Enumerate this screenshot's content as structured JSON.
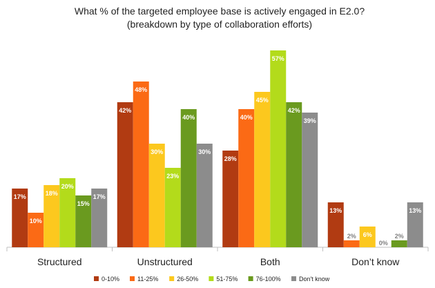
{
  "chart_data": {
    "type": "bar",
    "title": "What % of the targeted employee base is actively engaged in E2.0?",
    "subtitle": "(breakdown by type of collaboration efforts)",
    "categories": [
      "Structured",
      "Unstructured",
      "Both",
      "Don’t know"
    ],
    "series": [
      {
        "name": "0-10%",
        "color": "#b13b12",
        "values": [
          17,
          42,
          28,
          13
        ],
        "labels": [
          "17%",
          "42%",
          "28%",
          "13%"
        ]
      },
      {
        "name": "11-25%",
        "color": "#fb6a15",
        "values": [
          10,
          48,
          40,
          2
        ],
        "labels": [
          "10%",
          "48%",
          "40%",
          "2%"
        ]
      },
      {
        "name": "26-50%",
        "color": "#fcc81e",
        "values": [
          18,
          30,
          45,
          6
        ],
        "labels": [
          "18%",
          "30%",
          "45%",
          "6%"
        ]
      },
      {
        "name": "51-75%",
        "color": "#b3db1b",
        "values": [
          20,
          23,
          57,
          0
        ],
        "labels": [
          "20%",
          "23%",
          "57%",
          "0%"
        ]
      },
      {
        "name": "76-100%",
        "color": "#6a9a1f",
        "values": [
          15,
          40,
          42,
          2
        ],
        "labels": [
          "15%",
          "40%",
          "42%",
          "2%"
        ]
      },
      {
        "name": "Don't know",
        "color": "#8c8c8c",
        "values": [
          17,
          30,
          39,
          13
        ],
        "labels": [
          "17%",
          "30%",
          "39%",
          "13%"
        ]
      }
    ],
    "ylim": [
      0,
      60
    ],
    "grid": false,
    "legend_position": "bottom",
    "category_separators": true
  }
}
